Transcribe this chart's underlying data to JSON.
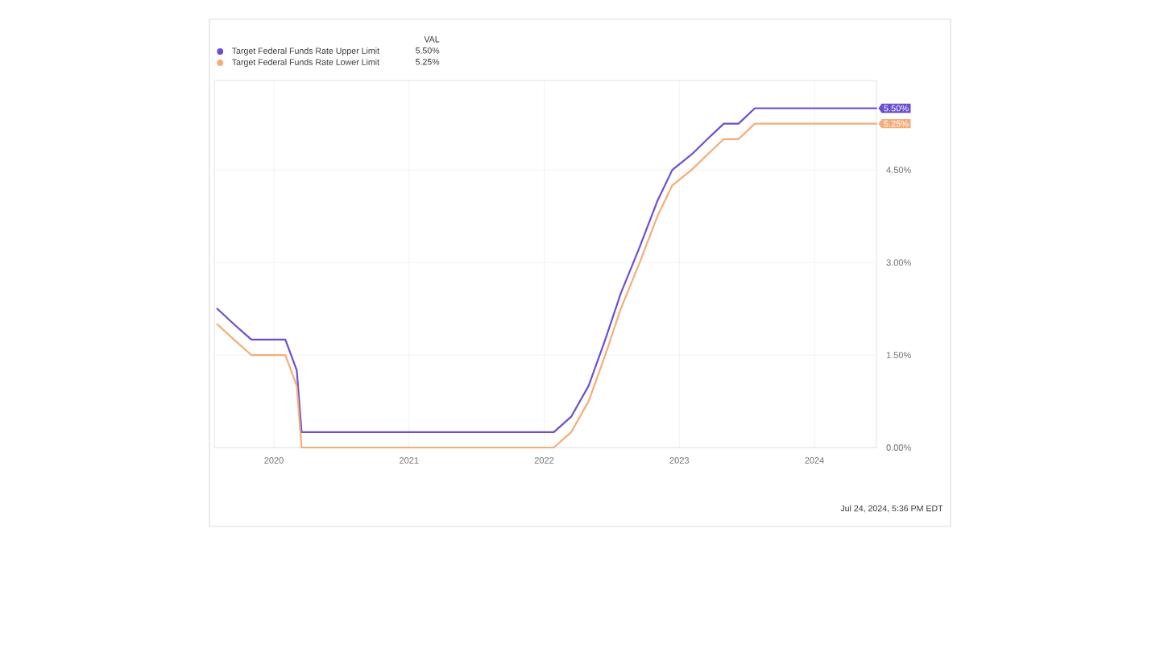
{
  "chart_data": {
    "type": "line",
    "legend_title": "VAL",
    "legend": "top left",
    "grid": true,
    "x": [
      "2019-08-01",
      "2019-09-15",
      "2019-11-01",
      "2020-02-01",
      "2020-03-03",
      "2020-03-16",
      "2022-01-27",
      "2022-03-15",
      "2022-05-01",
      "2022-06-15",
      "2022-07-27",
      "2022-09-16",
      "2022-11-03",
      "2022-12-13",
      "2023-02-03",
      "2023-03-18",
      "2023-05-01",
      "2023-06-10",
      "2023-07-24",
      "2024-06-17"
    ],
    "series": [
      {
        "name": "Target Federal Funds Rate Upper Limit",
        "color": "#6b4fd0",
        "values": [
          2.25,
          2.0,
          1.75,
          1.75,
          1.25,
          0.25,
          0.25,
          0.5,
          1.0,
          1.75,
          2.5,
          3.25,
          4.0,
          4.5,
          4.75,
          5.0,
          5.25,
          5.25,
          5.5,
          5.5
        ],
        "value_labels": [
          null,
          null,
          null,
          null,
          null,
          null,
          null,
          null,
          null,
          null,
          null,
          null,
          null,
          null,
          null,
          null,
          null,
          null,
          null,
          "5.50%"
        ]
      },
      {
        "name": "Target Federal Funds Rate Lower Limit",
        "color": "#f5ac78",
        "values": [
          2.0,
          1.75,
          1.5,
          1.5,
          1.0,
          0,
          0,
          0.25,
          0.75,
          1.5,
          2.25,
          3.0,
          3.75,
          4.25,
          4.5,
          4.75,
          5.0,
          5.0,
          5.25,
          5.25
        ],
        "value_labels": [
          null,
          null,
          null,
          null,
          null,
          null,
          null,
          null,
          null,
          null,
          null,
          null,
          null,
          null,
          null,
          null,
          null,
          null,
          null,
          "5.25%"
        ]
      }
    ],
    "xlim": [
      "2019-07-24",
      "2024-06-17"
    ],
    "ylim": [
      0,
      5.95
    ],
    "xticks": [
      "2020",
      "2021",
      "2022",
      "2023",
      "2024"
    ],
    "yticks": [
      {
        "value": 0,
        "label": "0.00%"
      },
      {
        "value": 1.5,
        "label": "1.50%"
      },
      {
        "value": 3,
        "label": "3.00%"
      },
      {
        "value": 4.5,
        "label": "4.50%"
      }
    ],
    "annotations": [
      "5.50%",
      "5.25%",
      "Jul 24, 2024, 5:36 PM EDT"
    ]
  }
}
